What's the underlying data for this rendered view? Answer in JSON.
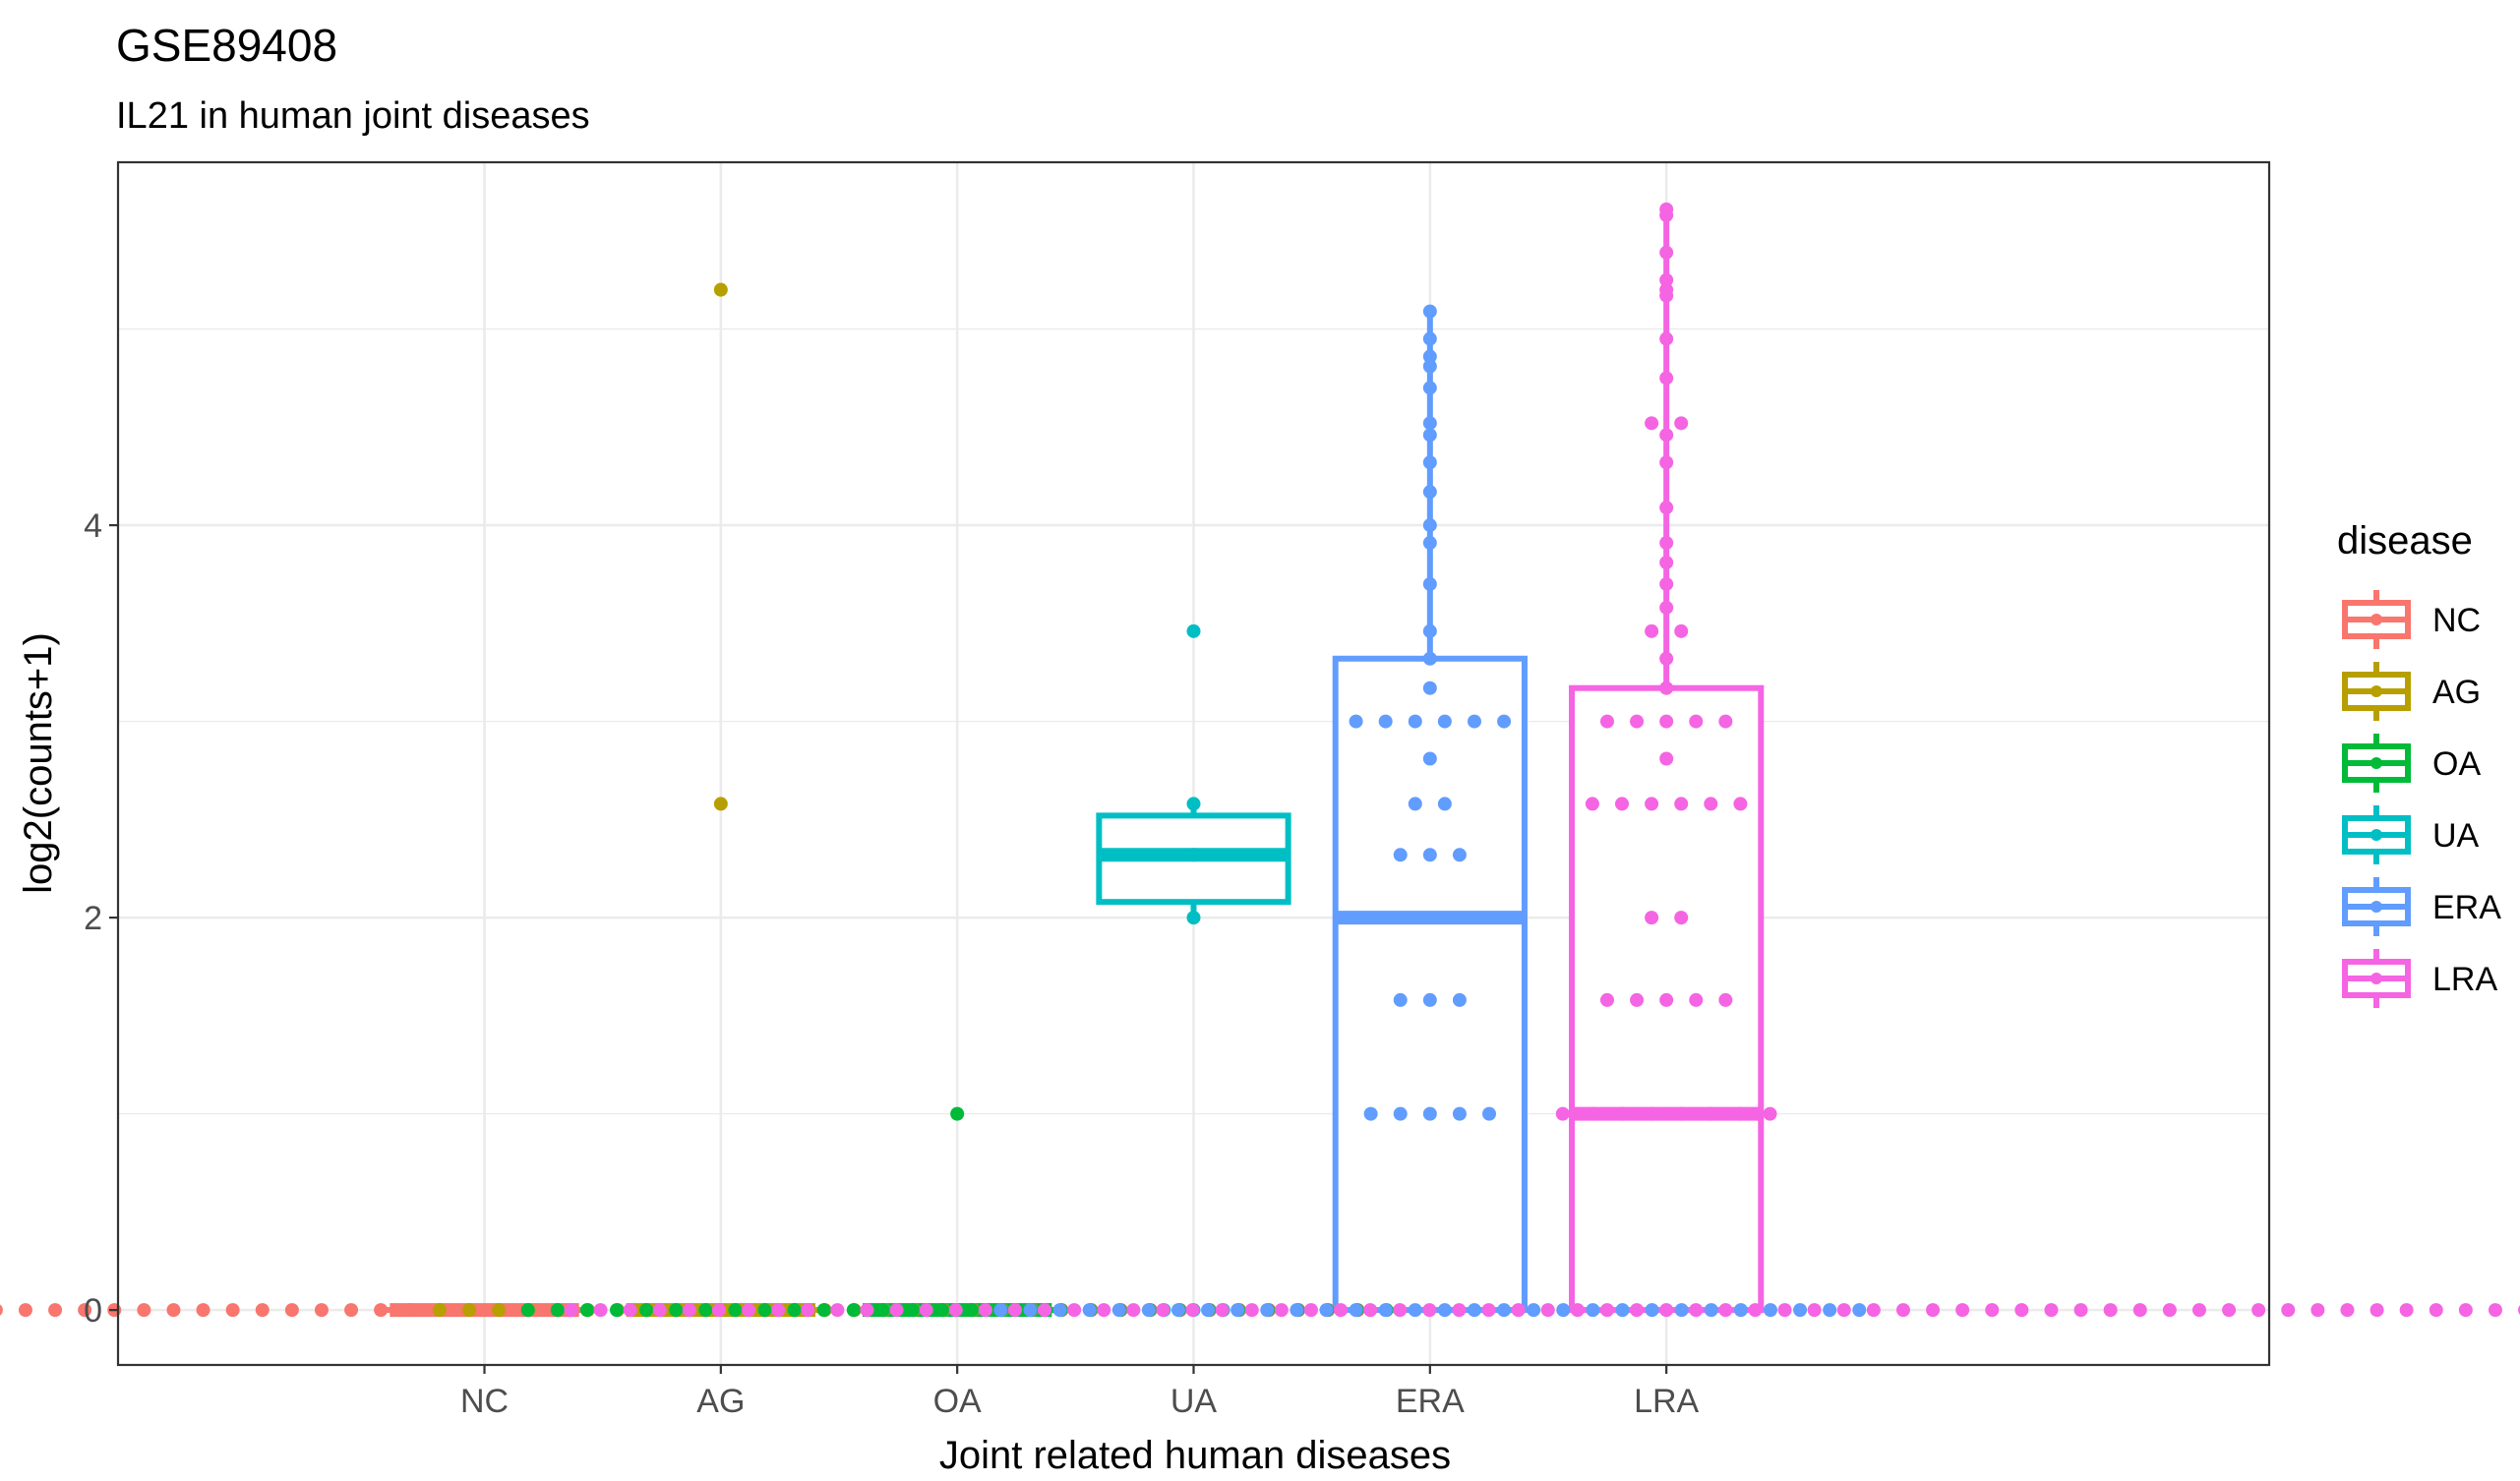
{
  "chart_data": {
    "type": "box",
    "title": "GSE89408",
    "subtitle": "IL21 in human joint diseases",
    "xlabel": "Joint related human diseases",
    "ylabel": "log2(counts+1)",
    "categories": [
      "NC",
      "AG",
      "OA",
      "UA",
      "ERA",
      "LRA"
    ],
    "x_range": [
      0.0,
      9.1
    ],
    "category_positions": [
      1.55,
      2.55,
      3.55,
      4.55,
      5.55,
      6.55
    ],
    "ylim": [
      -0.28,
      5.85
    ],
    "yticks": [
      0,
      2,
      4
    ],
    "grid": true,
    "legend": {
      "title": "disease",
      "position": "right",
      "entries": [
        "NC",
        "AG",
        "OA",
        "UA",
        "ERA",
        "LRA"
      ]
    },
    "colors": {
      "NC": "#F8766D",
      "AG": "#B79F00",
      "OA": "#00BA38",
      "UA": "#00BFC4",
      "ERA": "#619CFF",
      "LRA": "#F564E3"
    },
    "series": [
      {
        "name": "NC",
        "box": {
          "q1": 0,
          "median": 0,
          "q3": 0,
          "whisker_low": 0,
          "whisker_high": 0
        },
        "points": {
          "zero_count": 60,
          "nonzero": []
        }
      },
      {
        "name": "AG",
        "box": {
          "q1": 0,
          "median": 0,
          "q3": 0,
          "whisker_low": 0,
          "whisker_high": 0
        },
        "points": {
          "zero_count": 20,
          "nonzero": [
            5.2,
            2.58
          ]
        }
      },
      {
        "name": "OA",
        "box": {
          "q1": 0,
          "median": 0,
          "q3": 0,
          "whisker_low": 0,
          "whisker_high": 0
        },
        "points": {
          "zero_count": 30,
          "nonzero": [
            1.0
          ]
        }
      },
      {
        "name": "UA",
        "box": {
          "q1": 2.08,
          "median": 2.32,
          "q3": 2.52,
          "whisker_low": 2.0,
          "whisker_high": 2.58
        },
        "points": {
          "zero_count": 3,
          "nonzero": [
            3.46,
            2.58,
            2.32,
            2.0
          ]
        }
      },
      {
        "name": "ERA",
        "box": {
          "q1": 0,
          "median": 2.0,
          "q3": 3.32,
          "whisker_low": 0,
          "whisker_high": 5.09
        },
        "points": {
          "zero_count": 30,
          "nonzero": [
            5.09,
            4.95,
            4.86,
            4.81,
            4.7,
            4.52,
            4.46,
            4.32,
            4.17,
            4.0,
            3.91,
            3.7,
            3.46,
            3.32,
            3.17,
            3.0,
            3.0,
            3.0,
            3.0,
            3.0,
            3.0,
            2.81,
            2.58,
            2.58,
            2.32,
            2.32,
            2.32,
            1.58,
            1.58,
            1.58,
            1.0,
            1.0,
            1.0,
            1.0,
            1.0
          ]
        }
      },
      {
        "name": "LRA",
        "box": {
          "q1": 0,
          "median": 1.0,
          "q3": 3.17,
          "whisker_low": 0,
          "whisker_high": 5.61
        },
        "points": {
          "zero_count": 75,
          "nonzero": [
            5.61,
            5.58,
            5.39,
            5.25,
            5.2,
            5.17,
            4.95,
            4.75,
            4.52,
            4.52,
            4.46,
            4.32,
            4.09,
            3.91,
            3.81,
            3.7,
            3.58,
            3.46,
            3.46,
            3.32,
            3.17,
            3.0,
            3.0,
            3.0,
            3.0,
            3.0,
            2.81,
            2.58,
            2.58,
            2.58,
            2.58,
            2.58,
            2.58,
            2.0,
            2.0,
            1.58,
            1.58,
            1.58,
            1.58,
            1.58,
            1.0,
            1.0,
            1.0,
            1.0,
            1.0,
            1.0,
            1.0,
            1.0
          ]
        }
      }
    ]
  }
}
